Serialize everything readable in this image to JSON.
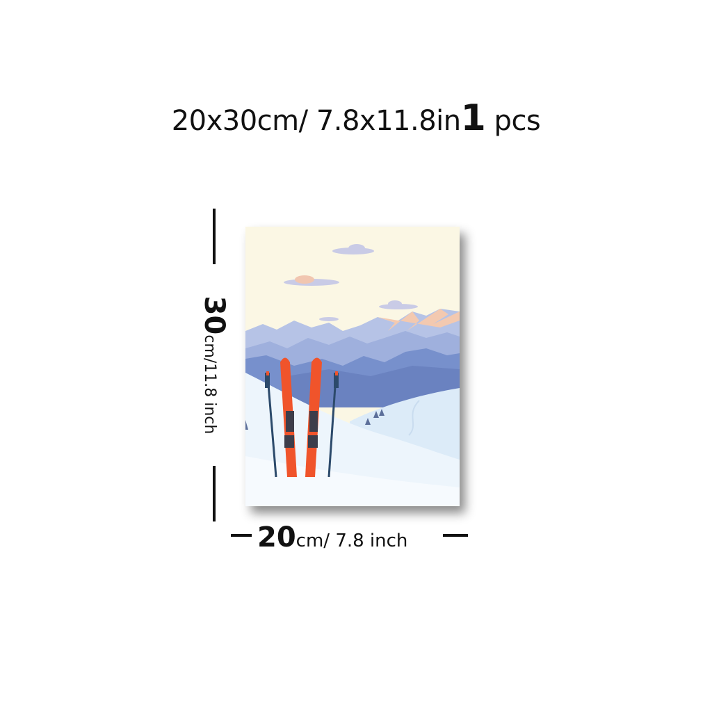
{
  "header": {
    "size_text": "20x30cm/ 7.8x11.8in",
    "quantity_number": "1",
    "quantity_unit": "pcs"
  },
  "dimensions": {
    "height_number": "30",
    "height_unit_text": "cm/11.8 inch",
    "width_number": "20",
    "width_unit_text": "cm/ 7.8 inch"
  },
  "poster": {
    "subject": "ski-mountain-scene",
    "colors": {
      "sky": "#fbf7e4",
      "far_mountain": "#b6c3e6",
      "mid_mountain": "#8fa3d6",
      "near_mountain": "#6f87c6",
      "snow": "#e8f2fb",
      "ski": "#f0542b",
      "pole": "#2c4a6b"
    }
  }
}
